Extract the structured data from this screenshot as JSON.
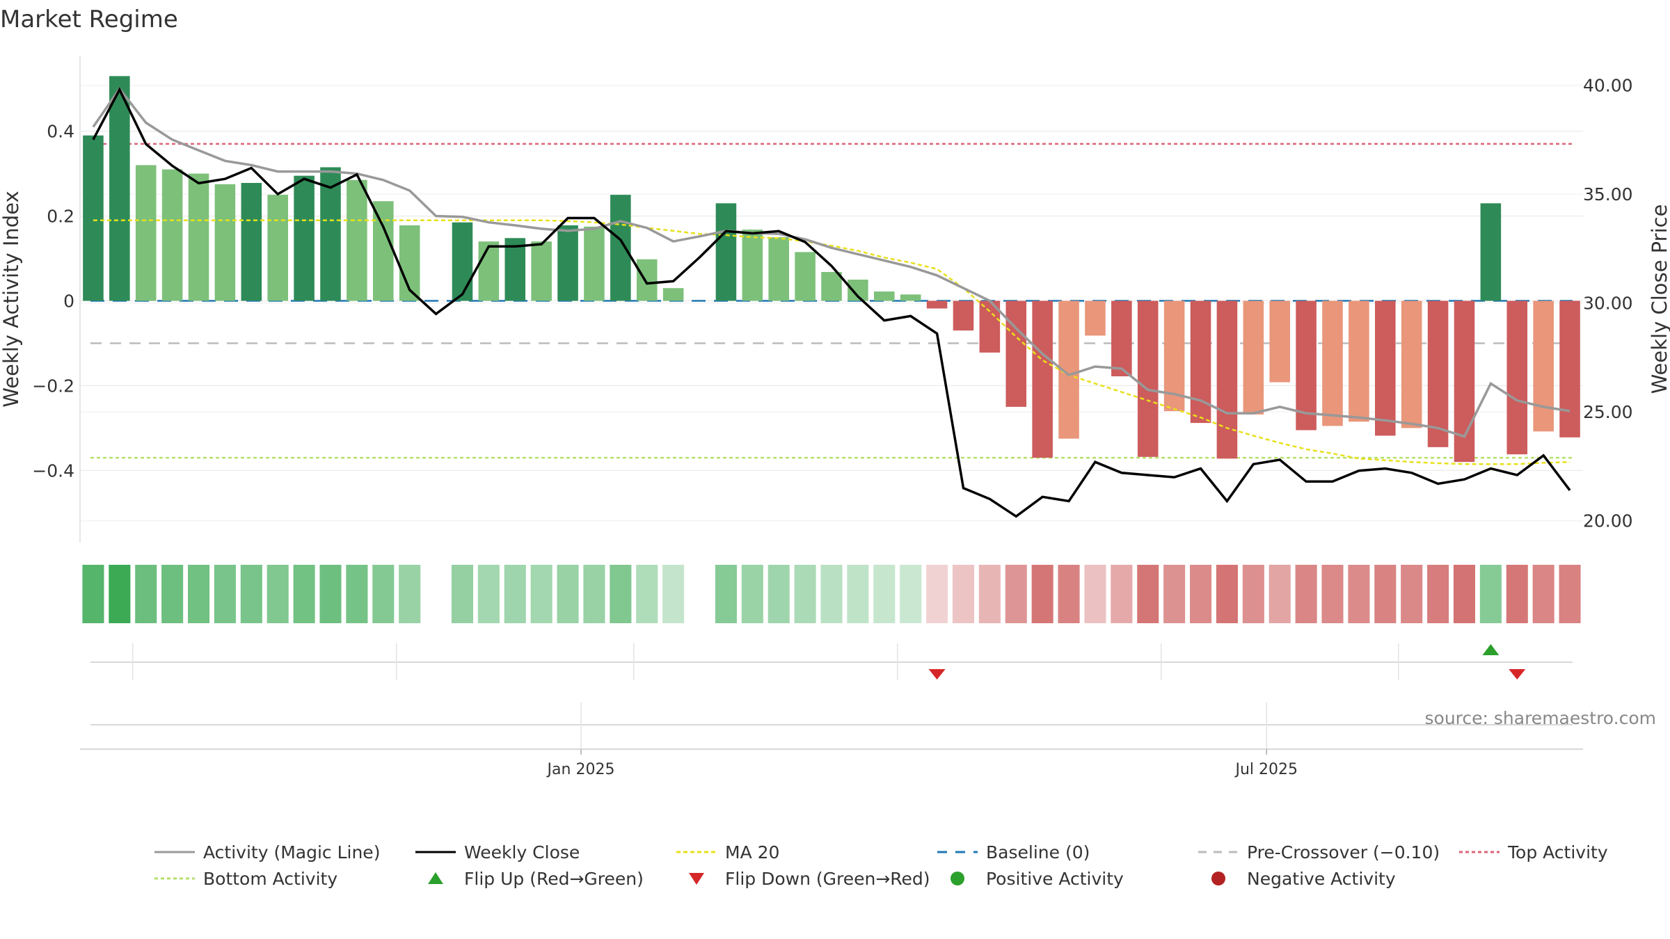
{
  "chart_data": {
    "type": "bar",
    "title": "Market Regime",
    "ylabel": "Weekly Activity Index",
    "y2label": "Weekly Close Price",
    "ylim": [
      -0.57,
      0.57
    ],
    "y2lim": [
      19.0,
      41.2
    ],
    "yticks": [
      0.4,
      0.2,
      0,
      -0.2,
      -0.4
    ],
    "ytick_labels": [
      "0.4",
      "0.2",
      "0",
      "−0.2",
      "−0.4"
    ],
    "y2ticks": [
      40.0,
      35.0,
      30.0,
      25.0,
      20.0
    ],
    "y2tick_labels": [
      "40.00",
      "35.00",
      "30.00",
      "25.00",
      "20.00"
    ],
    "x_labels": [
      {
        "index": 19,
        "label": "Jan 2025"
      },
      {
        "index": 45,
        "label": "Jul 2025"
      }
    ],
    "activity": [
      0.39,
      0.53,
      0.32,
      0.31,
      0.3,
      0.275,
      0.278,
      0.25,
      0.295,
      0.315,
      0.285,
      0.235,
      0.178,
      null,
      0.185,
      0.14,
      0.148,
      0.14,
      0.178,
      0.175,
      0.25,
      0.098,
      0.03,
      null,
      0.23,
      0.168,
      0.15,
      0.115,
      0.068,
      0.05,
      0.022,
      0.015,
      -0.018,
      -0.07,
      -0.122,
      -0.25,
      -0.37,
      -0.325,
      -0.082,
      -0.178,
      -0.368,
      -0.26,
      -0.288,
      -0.372,
      -0.268,
      -0.192,
      -0.305,
      -0.295,
      -0.285,
      -0.318,
      -0.3,
      -0.345,
      -0.38,
      0.23,
      -0.362,
      -0.308,
      -0.322
    ],
    "weekly_close": [
      37.5,
      39.8,
      37.3,
      36.3,
      35.5,
      35.7,
      36.2,
      35.0,
      35.7,
      35.3,
      35.9,
      33.5,
      30.6,
      29.5,
      30.4,
      32.6,
      32.6,
      32.7,
      33.9,
      33.9,
      32.9,
      30.9,
      31.0,
      32.1,
      33.3,
      33.2,
      33.3,
      32.8,
      31.7,
      30.3,
      29.2,
      29.4,
      28.6,
      21.5,
      21.0,
      20.2,
      21.1,
      20.9,
      22.7,
      22.2,
      22.1,
      22.0,
      22.4,
      20.9,
      22.6,
      22.8,
      21.8,
      21.8,
      22.3,
      22.4,
      22.2,
      21.7,
      21.9,
      22.4,
      22.1,
      23.0,
      21.4
    ],
    "magic_line": [
      0.41,
      0.5,
      0.42,
      0.38,
      0.355,
      0.33,
      0.32,
      0.305,
      0.305,
      0.305,
      0.3,
      0.285,
      0.26,
      0.2,
      0.198,
      0.185,
      0.178,
      0.17,
      0.165,
      0.17,
      0.188,
      0.172,
      0.14,
      0.152,
      0.165,
      0.16,
      0.158,
      0.145,
      0.125,
      0.11,
      0.095,
      0.08,
      0.06,
      0.03,
      0.0,
      -0.065,
      -0.125,
      -0.175,
      -0.155,
      -0.16,
      -0.21,
      -0.22,
      -0.235,
      -0.265,
      -0.265,
      -0.25,
      -0.265,
      -0.27,
      -0.275,
      -0.282,
      -0.29,
      -0.3,
      -0.32,
      -0.195,
      -0.235,
      -0.25,
      -0.26
    ],
    "ma20": [
      0.19,
      0.19,
      0.19,
      0.19,
      0.19,
      0.19,
      0.19,
      0.19,
      0.19,
      0.19,
      0.19,
      0.19,
      0.19,
      0.19,
      0.19,
      0.19,
      0.19,
      0.19,
      0.188,
      0.185,
      0.18,
      0.172,
      0.165,
      0.158,
      0.155,
      0.15,
      0.148,
      0.14,
      0.13,
      0.118,
      0.102,
      0.09,
      0.075,
      0.03,
      -0.025,
      -0.085,
      -0.14,
      -0.175,
      -0.195,
      -0.215,
      -0.235,
      -0.255,
      -0.275,
      -0.3,
      -0.318,
      -0.335,
      -0.35,
      -0.36,
      -0.372,
      -0.376,
      -0.38,
      -0.383,
      -0.385,
      -0.385,
      -0.385,
      -0.382,
      -0.38
    ],
    "baseline": 0,
    "pre_crossover": -0.1,
    "top_activity": 0.37,
    "bottom_activity": -0.37,
    "flip_up_indices": [
      53
    ],
    "flip_down_indices": [
      32,
      54
    ],
    "colors": {
      "strong_green": "#2e8b57",
      "light_green": "#7dc07a",
      "strong_red": "#cd5c5c",
      "light_red": "#e9967a",
      "flip_up": "#2ca02c",
      "flip_down": "#d62728",
      "positive_dot": "#2ca02c",
      "negative_dot": "#b22222",
      "magic_line": "#999999",
      "weekly_close": "#000000",
      "ma20": "#e8e01a",
      "baseline": "#1f77b4",
      "pre_crossover": "#bbbbbb",
      "top_activity": "#dc6478",
      "bottom_activity": "#b5e06a"
    },
    "source": "source: sharemaestro.com",
    "legend_position": "bottom",
    "legend": [
      "Activity (Magic Line)",
      "Weekly Close",
      "MA 20",
      "Baseline (0)",
      "Pre-Crossover (−0.10)",
      "Top Activity",
      "Bottom Activity",
      "Flip Up (Red→Green)",
      "Flip Down (Green→Red)",
      "Positive Activity",
      "Negative Activity"
    ]
  }
}
